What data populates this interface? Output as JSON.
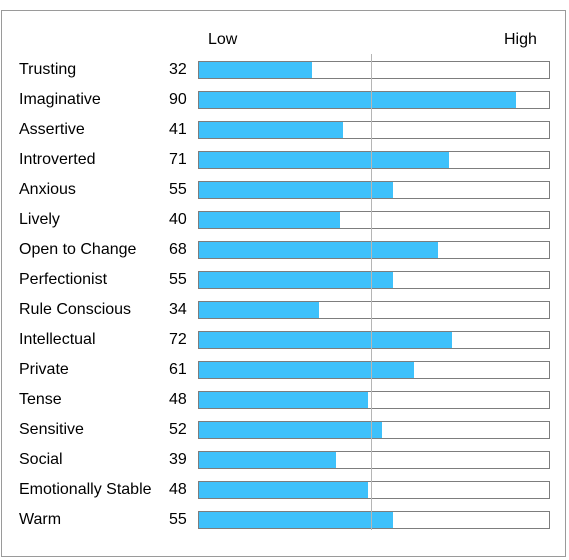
{
  "chart_data": {
    "type": "bar",
    "orientation": "horizontal",
    "scale": {
      "low_label": "Low",
      "high_label": "High",
      "min": 0,
      "max": 100,
      "midline": 50
    },
    "colors": {
      "bar": "#3ec1fb",
      "track_border": "#7d7d7d",
      "midline": "#b5b5b5",
      "frame": "#9a9a9a"
    },
    "categories": [
      "Trusting",
      "Imaginative",
      "Assertive",
      "Introverted",
      "Anxious",
      "Lively",
      "Open to Change",
      "Perfectionist",
      "Rule Conscious",
      "Intellectual",
      "Private",
      "Tense",
      "Sensitive",
      "Social",
      "Emotionally Stable",
      "Warm"
    ],
    "values": [
      32,
      90,
      41,
      71,
      55,
      40,
      68,
      55,
      34,
      72,
      61,
      48,
      52,
      39,
      48,
      55
    ]
  }
}
